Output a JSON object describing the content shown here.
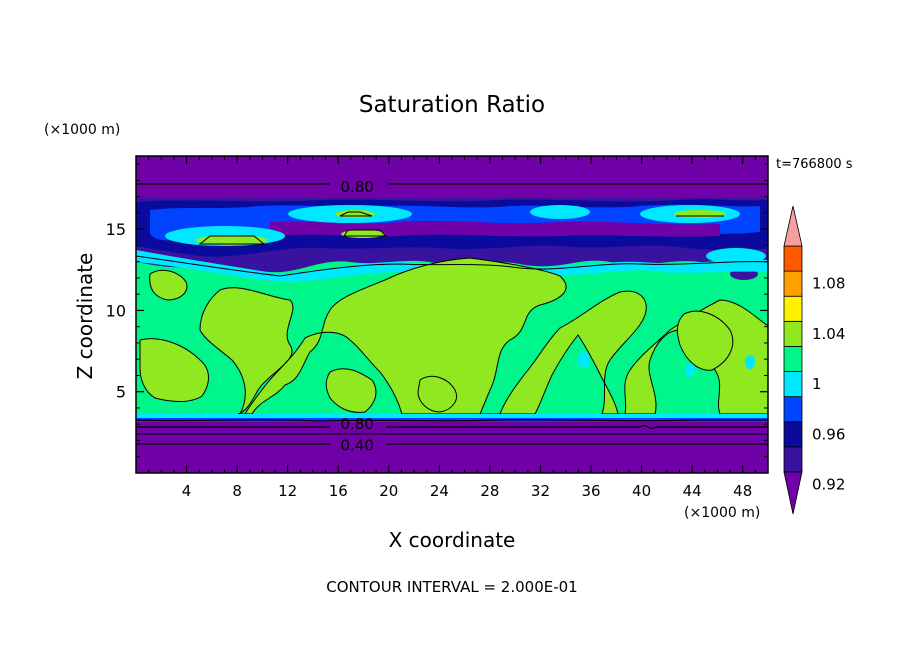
{
  "chart_data": {
    "type": "heatmap",
    "title": "Saturation Ratio",
    "xlabel": "X coordinate",
    "ylabel": "Z coordinate",
    "x_unit": "(×1000 m)",
    "y_unit": "(×1000 m)",
    "time_label": "t=766800 s",
    "footer": "CONTOUR INTERVAL = 2.000E-01",
    "xlim": [
      0,
      50
    ],
    "ylim": [
      0,
      19.5
    ],
    "x_ticks": [
      4,
      8,
      12,
      16,
      20,
      24,
      28,
      32,
      36,
      40,
      44,
      48
    ],
    "y_ticks": [
      5,
      10,
      15
    ],
    "contour_labels": [
      {
        "text": "0.80",
        "x": 17.5,
        "y": 17.6
      },
      {
        "text": "0.80",
        "x": 17.5,
        "y": 3.0
      },
      {
        "text": "0.40",
        "x": 17.5,
        "y": 1.7
      }
    ],
    "colorbar": {
      "levels": [
        0.92,
        0.94,
        0.96,
        0.98,
        1.0,
        1.02,
        1.04,
        1.06,
        1.08,
        1.1
      ],
      "labels": [
        "0.92",
        "0.96",
        "1",
        "1.04",
        "1.08"
      ],
      "label_levels": [
        0.92,
        0.96,
        1.0,
        1.04,
        1.08
      ],
      "colors": [
        "#7000a8",
        "#3a12a0",
        "#0a0a9c",
        "#0044ff",
        "#00e8ff",
        "#00f58a",
        "#90e820",
        "#fff200",
        "#ffa000",
        "#ff5a00",
        "#ff1010",
        "#f4a0a0"
      ],
      "under_color": "#7000a8",
      "over_color": "#f4a0a0"
    },
    "field_summary": {
      "top_layer_value": "< 0.92 (0.80 contour at z≈17.6)",
      "cloud_band_z": [
        14,
        17.5
      ],
      "mid_layer_value": "0.98–1.02",
      "bottom_layer_value": "< 0.92 (0.80 contour at z≈3.0, 0.40 at z≈1.7)"
    }
  }
}
